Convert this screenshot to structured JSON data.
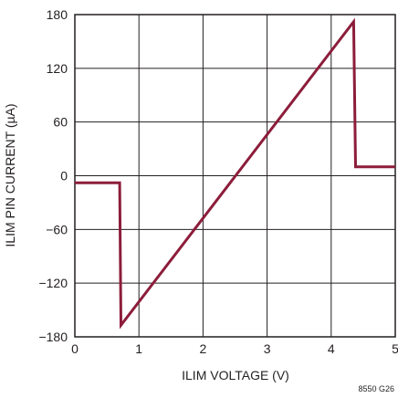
{
  "chart_data": {
    "type": "line",
    "title": "",
    "xlabel": "ILIM VOLTAGE (V)",
    "ylabel": "ILIM PIN CURRENT (µA)",
    "xlim": [
      0,
      5
    ],
    "ylim": [
      -180,
      180
    ],
    "xticks": [
      0,
      1,
      2,
      3,
      4,
      5
    ],
    "yticks": [
      -180,
      -120,
      -60,
      0,
      60,
      120,
      180
    ],
    "x_tick_labels": [
      "0",
      "1",
      "2",
      "3",
      "4",
      "5"
    ],
    "y_tick_labels": [
      "−180",
      "−120",
      "−60",
      "0",
      "60",
      "120",
      "180"
    ],
    "grid": true,
    "series": [
      {
        "x": [
          0,
          0.7,
          0.72,
          4.35,
          4.38,
          5
        ],
        "y": [
          -8,
          -8,
          -167,
          172,
          10,
          10
        ],
        "color": "#8c1d3a"
      }
    ],
    "figure_code": "8550 G26"
  }
}
